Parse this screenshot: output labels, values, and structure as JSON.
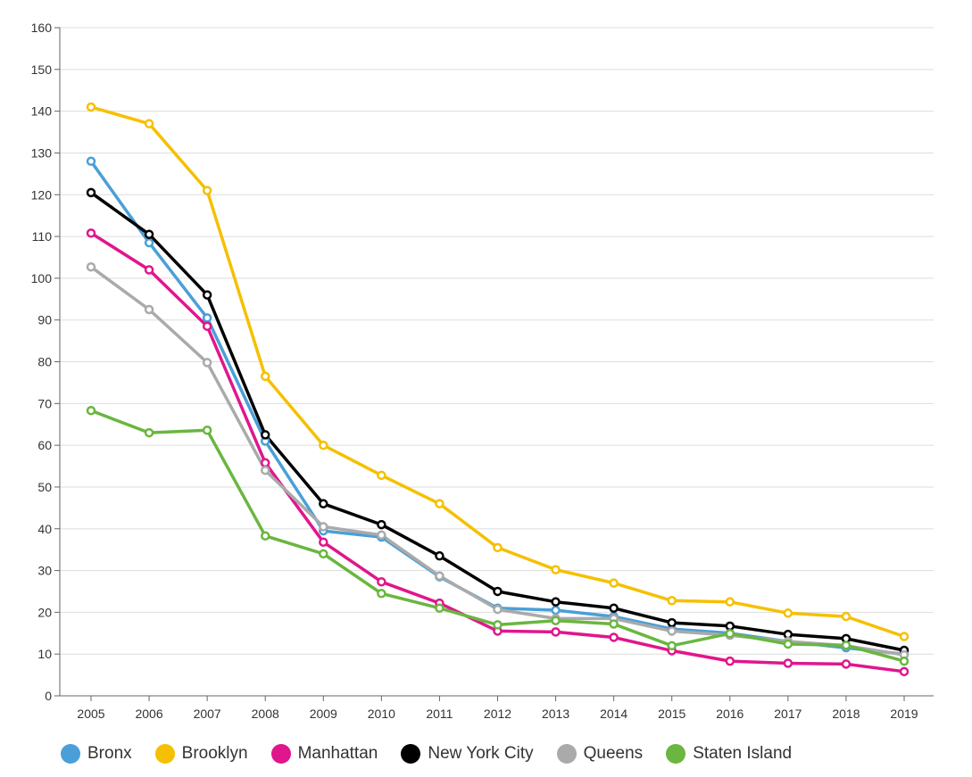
{
  "chart_data": {
    "type": "line",
    "title": "",
    "xlabel": "",
    "ylabel": "",
    "x": [
      "2005",
      "2006",
      "2007",
      "2008",
      "2009",
      "2010",
      "2011",
      "2012",
      "2013",
      "2014",
      "2015",
      "2016",
      "2017",
      "2018",
      "2019"
    ],
    "ylim": [
      0,
      160
    ],
    "yticks": [
      0,
      10,
      20,
      30,
      40,
      50,
      60,
      70,
      80,
      90,
      100,
      110,
      120,
      130,
      140,
      150,
      160
    ],
    "grid": true,
    "legend_position": "bottom",
    "series": [
      {
        "name": "Bronx",
        "color": "#4a9fd8",
        "values": [
          128,
          108.5,
          90.5,
          61,
          39.5,
          38,
          28.5,
          21,
          20.5,
          19,
          16,
          15,
          13,
          11.5,
          10
        ]
      },
      {
        "name": "Brooklyn",
        "color": "#f5c000",
        "values": [
          141,
          137,
          121,
          76.5,
          60,
          52.8,
          46,
          35.5,
          30.2,
          27,
          22.8,
          22.5,
          19.8,
          19,
          14.2
        ]
      },
      {
        "name": "Manhattan",
        "color": "#e0168c",
        "values": [
          110.8,
          102,
          88.5,
          55.8,
          36.8,
          27.3,
          22.2,
          15.5,
          15.3,
          14,
          10.8,
          8.3,
          7.8,
          7.6,
          5.8
        ]
      },
      {
        "name": "New York City",
        "color": "#000000",
        "values": [
          120.5,
          110.5,
          96,
          62.5,
          46,
          41,
          33.5,
          25,
          22.5,
          21,
          17.5,
          16.7,
          14.7,
          13.7,
          10.9
        ]
      },
      {
        "name": "Queens",
        "color": "#aaaaaa",
        "values": [
          102.7,
          92.5,
          79.8,
          54,
          40.5,
          38.5,
          28.7,
          20.7,
          18.5,
          18.5,
          15.5,
          14.5,
          13,
          12,
          9.8
        ]
      },
      {
        "name": "Staten Island",
        "color": "#6ab640",
        "values": [
          68.3,
          63,
          63.6,
          38.3,
          34,
          24.5,
          21,
          17,
          18,
          17.2,
          12,
          14.9,
          12.4,
          12.1,
          8.3
        ]
      }
    ]
  }
}
